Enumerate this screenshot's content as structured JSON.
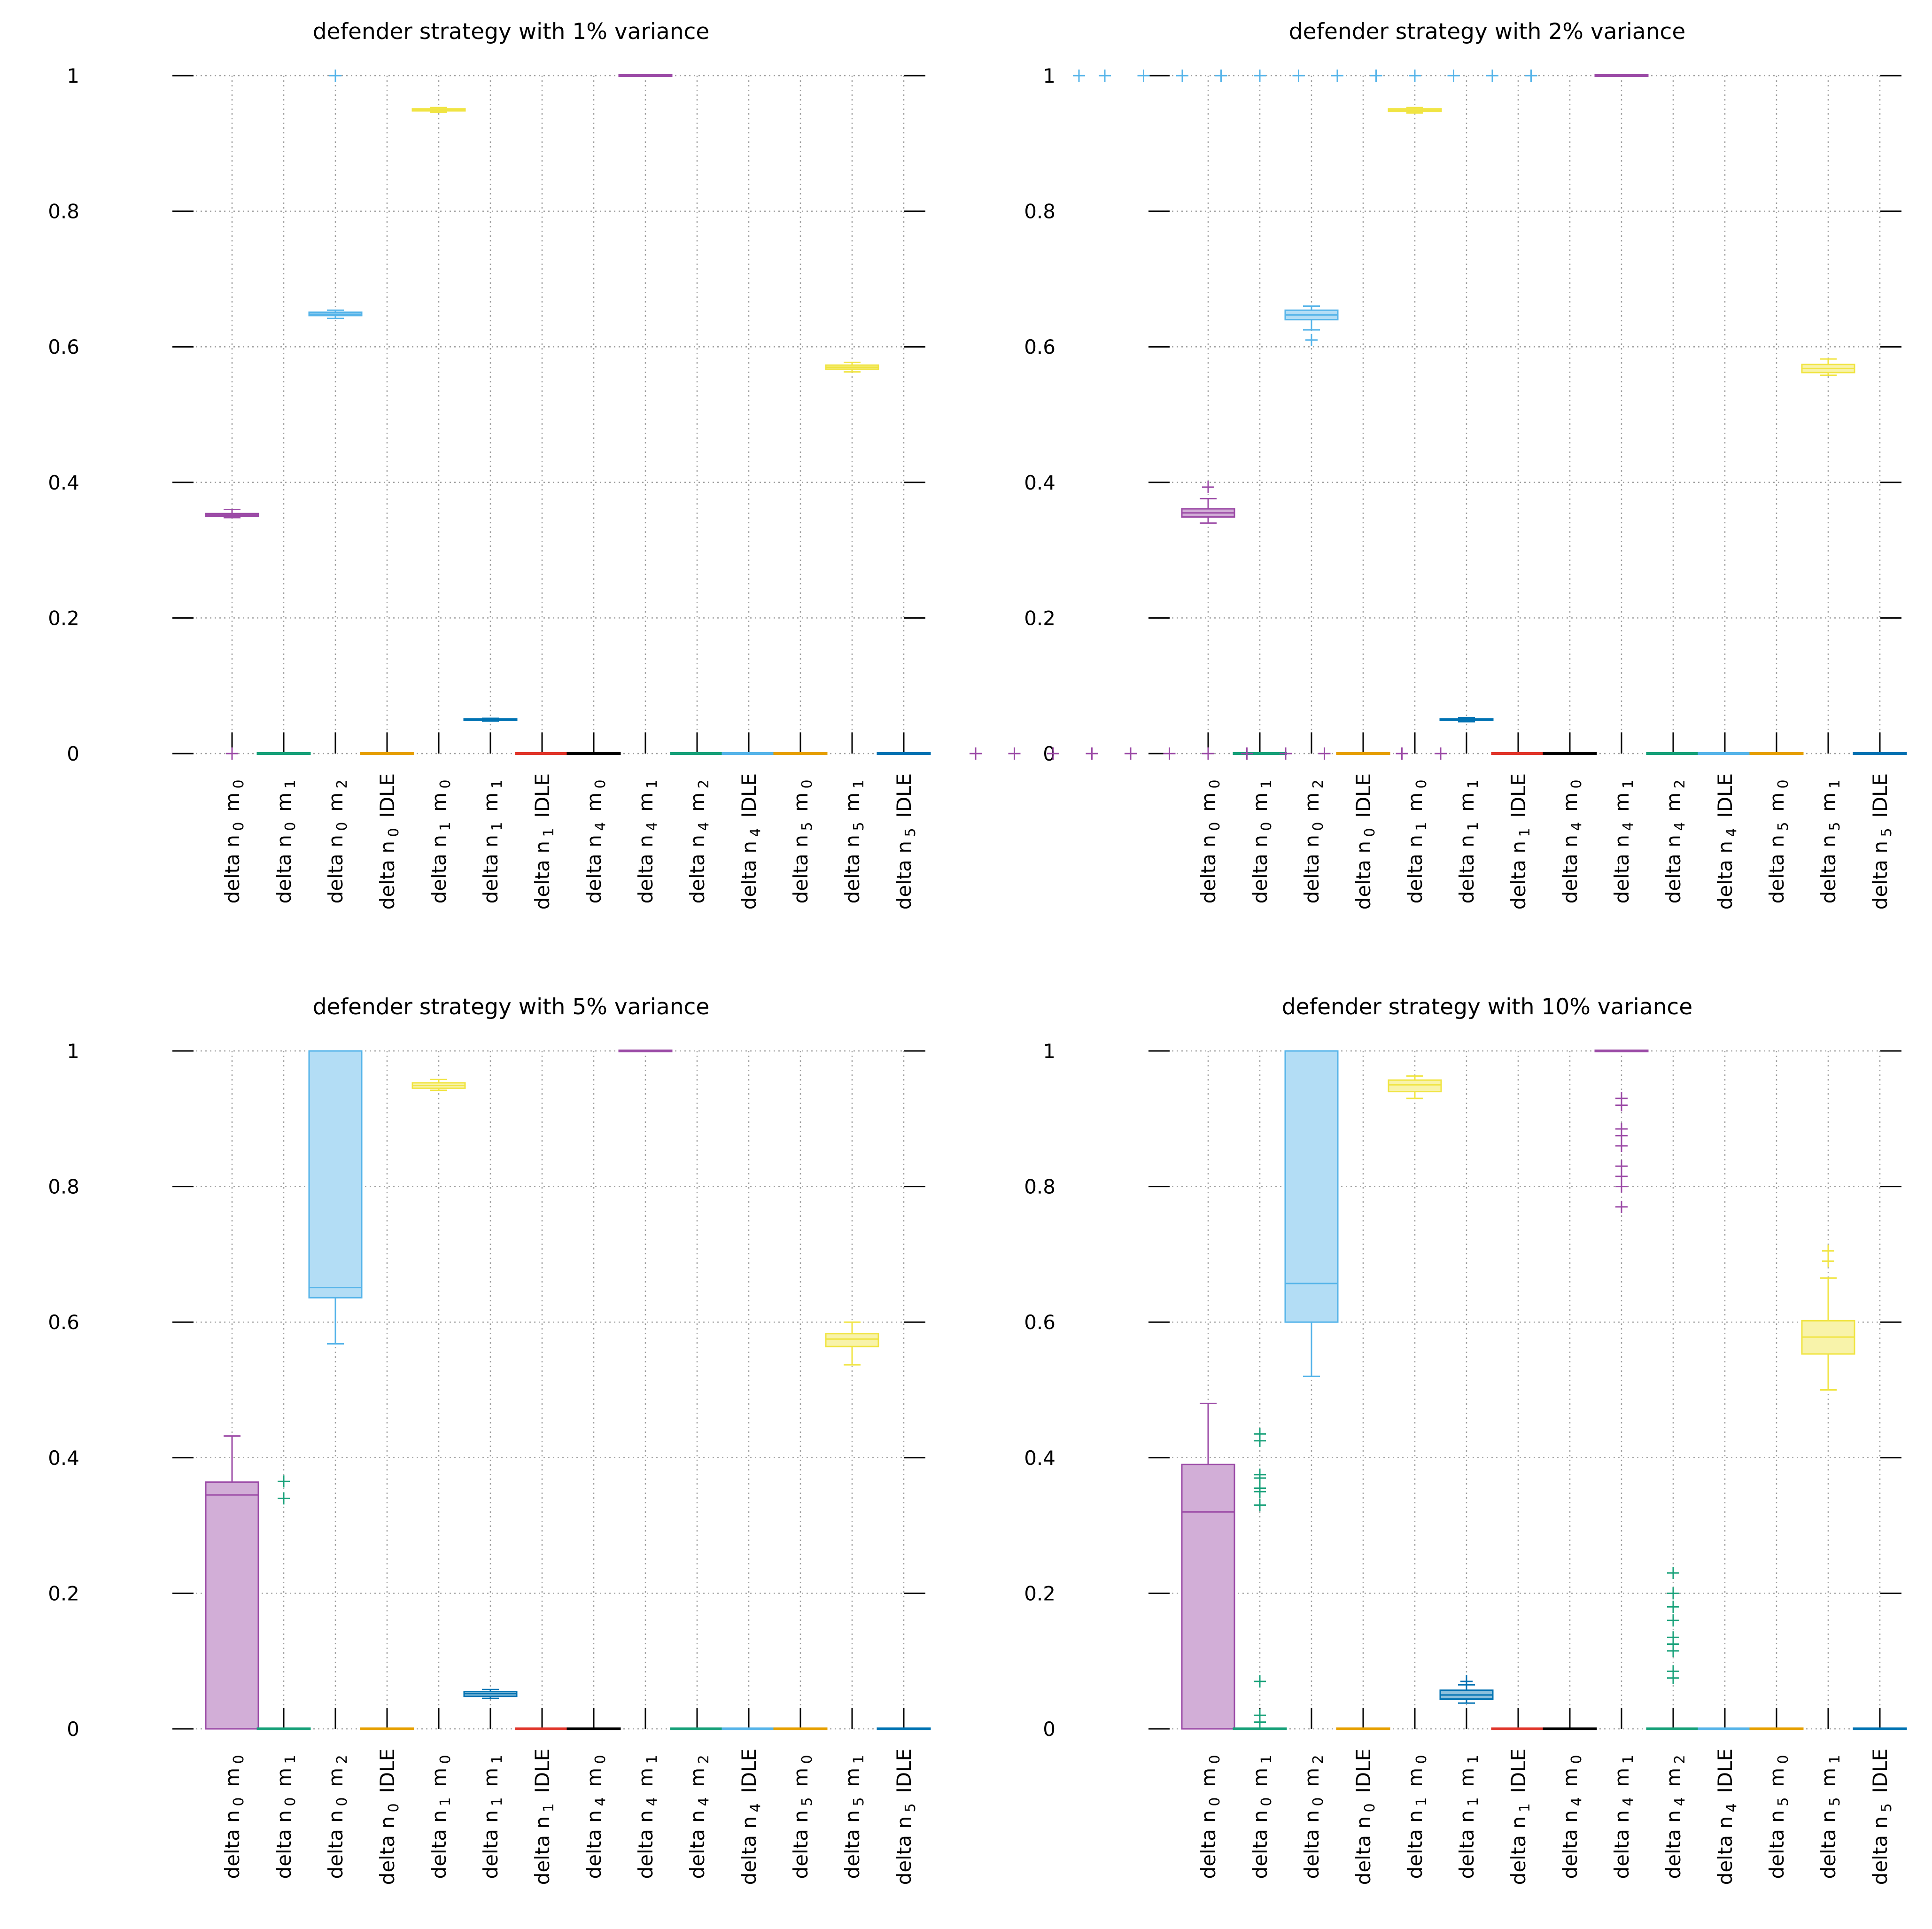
{
  "colors": [
    "#9b4aa6",
    "#16a078",
    "#56b4e9",
    "#e69f00",
    "#f0e442",
    "#0072b2",
    "#e0352a",
    "#000000"
  ],
  "chart_data": [
    {
      "type": "boxplot",
      "title": "defender strategy with 1% variance",
      "xlabel": "",
      "ylabel": "",
      "ylim": [
        0,
        1
      ],
      "yticks": [
        0,
        0.2,
        0.4,
        0.6,
        0.8,
        1
      ],
      "ytick_labels": [
        "0",
        "0.2",
        "0.4",
        "0.6",
        "0.8",
        "1"
      ],
      "grid": true,
      "categories": [
        "delta n_0 m_0",
        "delta n_0 m_1",
        "delta n_0 m_2",
        "delta n_0 IDLE",
        "delta n_1 m_0",
        "delta n_1 m_1",
        "delta n_1 IDLE",
        "delta n_4 m_0",
        "delta n_4 m_1",
        "delta n_4 m_2",
        "delta n_4 IDLE",
        "delta n_5 m_0",
        "delta n_5 m_1",
        "delta n_5 IDLE"
      ],
      "boxes": [
        {
          "whisker_low": 0.348,
          "q1": 0.35,
          "median": 0.352,
          "q3": 0.354,
          "whisker_high": 0.36,
          "outliers": [
            0
          ]
        },
        {
          "whisker_low": 0,
          "q1": 0,
          "median": 0,
          "q3": 0,
          "whisker_high": 0,
          "outliers": []
        },
        {
          "whisker_low": 0.642,
          "q1": 0.646,
          "median": 0.648,
          "q3": 0.651,
          "whisker_high": 0.654,
          "outliers": [
            1
          ]
        },
        {
          "whisker_low": 0,
          "q1": 0,
          "median": 0,
          "q3": 0,
          "whisker_high": 0,
          "outliers": []
        },
        {
          "whisker_low": 0.946,
          "q1": 0.948,
          "median": 0.95,
          "q3": 0.951,
          "whisker_high": 0.953,
          "outliers": []
        },
        {
          "whisker_low": 0.048,
          "q1": 0.049,
          "median": 0.05,
          "q3": 0.051,
          "whisker_high": 0.052,
          "outliers": []
        },
        {
          "whisker_low": 0,
          "q1": 0,
          "median": 0,
          "q3": 0,
          "whisker_high": 0,
          "outliers": []
        },
        {
          "whisker_low": 0,
          "q1": 0,
          "median": 0,
          "q3": 0,
          "whisker_high": 0,
          "outliers": []
        },
        {
          "whisker_low": 1,
          "q1": 1,
          "median": 1,
          "q3": 1,
          "whisker_high": 1,
          "outliers": []
        },
        {
          "whisker_low": 0,
          "q1": 0,
          "median": 0,
          "q3": 0,
          "whisker_high": 0,
          "outliers": []
        },
        {
          "whisker_low": 0,
          "q1": 0,
          "median": 0,
          "q3": 0,
          "whisker_high": 0,
          "outliers": []
        },
        {
          "whisker_low": 0,
          "q1": 0,
          "median": 0,
          "q3": 0,
          "whisker_high": 0,
          "outliers": []
        },
        {
          "whisker_low": 0.563,
          "q1": 0.567,
          "median": 0.57,
          "q3": 0.573,
          "whisker_high": 0.577,
          "outliers": []
        },
        {
          "whisker_low": 0,
          "q1": 0,
          "median": 0,
          "q3": 0,
          "whisker_high": 0,
          "outliers": []
        }
      ],
      "stray_points": []
    },
    {
      "type": "boxplot",
      "title": "defender strategy with 2% variance",
      "xlabel": "",
      "ylabel": "",
      "ylim": [
        0,
        1
      ],
      "yticks": [
        0,
        0.2,
        0.4,
        0.6,
        0.8,
        1
      ],
      "ytick_labels": [
        "0",
        "0.2",
        "0.4",
        "0.6",
        "0.8",
        "1"
      ],
      "grid": true,
      "categories": [
        "delta n_0 m_0",
        "delta n_0 m_1",
        "delta n_0 m_2",
        "delta n_0 IDLE",
        "delta n_1 m_0",
        "delta n_1 m_1",
        "delta n_1 IDLE",
        "delta n_4 m_0",
        "delta n_4 m_1",
        "delta n_4 m_2",
        "delta n_4 IDLE",
        "delta n_5 m_0",
        "delta n_5 m_1",
        "delta n_5 IDLE"
      ],
      "boxes": [
        {
          "whisker_low": 0.34,
          "q1": 0.349,
          "median": 0.355,
          "q3": 0.361,
          "whisker_high": 0.376,
          "outliers": [
            0.393,
            0
          ]
        },
        {
          "whisker_low": 0,
          "q1": 0,
          "median": 0,
          "q3": 0,
          "whisker_high": 0,
          "outliers": []
        },
        {
          "whisker_low": 0.625,
          "q1": 0.64,
          "median": 0.647,
          "q3": 0.654,
          "whisker_high": 0.66,
          "outliers": [
            0.61
          ]
        },
        {
          "whisker_low": 0,
          "q1": 0,
          "median": 0,
          "q3": 0,
          "whisker_high": 0,
          "outliers": []
        },
        {
          "whisker_low": 0.945,
          "q1": 0.947,
          "median": 0.949,
          "q3": 0.951,
          "whisker_high": 0.953,
          "outliers": []
        },
        {
          "whisker_low": 0.047,
          "q1": 0.049,
          "median": 0.05,
          "q3": 0.051,
          "whisker_high": 0.053,
          "outliers": []
        },
        {
          "whisker_low": 0,
          "q1": 0,
          "median": 0,
          "q3": 0,
          "whisker_high": 0,
          "outliers": []
        },
        {
          "whisker_low": 0,
          "q1": 0,
          "median": 0,
          "q3": 0,
          "whisker_high": 0,
          "outliers": []
        },
        {
          "whisker_low": 1,
          "q1": 1,
          "median": 1,
          "q3": 1,
          "whisker_high": 1,
          "outliers": []
        },
        {
          "whisker_low": 0,
          "q1": 0,
          "median": 0,
          "q3": 0,
          "whisker_high": 0,
          "outliers": []
        },
        {
          "whisker_low": 0,
          "q1": 0,
          "median": 0,
          "q3": 0,
          "whisker_high": 0,
          "outliers": []
        },
        {
          "whisker_low": 0,
          "q1": 0,
          "median": 0,
          "q3": 0,
          "whisker_high": 0,
          "outliers": []
        },
        {
          "whisker_low": 0.558,
          "q1": 0.562,
          "median": 0.568,
          "q3": 0.574,
          "whisker_high": 0.582,
          "outliers": []
        },
        {
          "whisker_low": 0,
          "q1": 0,
          "median": 0,
          "q3": 0,
          "whisker_high": 0,
          "outliers": []
        }
      ],
      "stray_points": [
        {
          "x": -2.5,
          "y": 1,
          "color_index": 2
        },
        {
          "x": -2.0,
          "y": 1,
          "color_index": 2
        },
        {
          "x": -1.25,
          "y": 1,
          "color_index": 2
        },
        {
          "x": -0.5,
          "y": 1,
          "color_index": 2
        },
        {
          "x": 0.25,
          "y": 1,
          "color_index": 2
        },
        {
          "x": 1.0,
          "y": 1,
          "color_index": 2
        },
        {
          "x": 1.75,
          "y": 1,
          "color_index": 2
        },
        {
          "x": 2.5,
          "y": 1,
          "color_index": 2
        },
        {
          "x": 3.25,
          "y": 1,
          "color_index": 2
        },
        {
          "x": 4.0,
          "y": 1,
          "color_index": 2
        },
        {
          "x": 4.75,
          "y": 1,
          "color_index": 2
        },
        {
          "x": 5.5,
          "y": 1,
          "color_index": 2
        },
        {
          "x": 6.25,
          "y": 1,
          "color_index": 2
        },
        {
          "x": -4.5,
          "y": 0,
          "color_index": 0
        },
        {
          "x": -3.75,
          "y": 0,
          "color_index": 0
        },
        {
          "x": -3.0,
          "y": 0,
          "color_index": 0
        },
        {
          "x": -2.25,
          "y": 0,
          "color_index": 0
        },
        {
          "x": -1.5,
          "y": 0,
          "color_index": 0
        },
        {
          "x": -0.75,
          "y": 0,
          "color_index": 0
        },
        {
          "x": 0.75,
          "y": 0,
          "color_index": 0
        },
        {
          "x": 1.5,
          "y": 0,
          "color_index": 0
        },
        {
          "x": 2.25,
          "y": 0,
          "color_index": 0
        },
        {
          "x": 3.75,
          "y": 0,
          "color_index": 0
        },
        {
          "x": 4.5,
          "y": 0,
          "color_index": 0
        }
      ]
    },
    {
      "type": "boxplot",
      "title": "defender strategy with 5% variance",
      "xlabel": "",
      "ylabel": "",
      "ylim": [
        0,
        1
      ],
      "yticks": [
        0,
        0.2,
        0.4,
        0.6,
        0.8,
        1
      ],
      "ytick_labels": [
        "0",
        "0.2",
        "0.4",
        "0.6",
        "0.8",
        "1"
      ],
      "grid": true,
      "categories": [
        "delta n_0 m_0",
        "delta n_0 m_1",
        "delta n_0 m_2",
        "delta n_0 IDLE",
        "delta n_1 m_0",
        "delta n_1 m_1",
        "delta n_1 IDLE",
        "delta n_4 m_0",
        "delta n_4 m_1",
        "delta n_4 m_2",
        "delta n_4 IDLE",
        "delta n_5 m_0",
        "delta n_5 m_1",
        "delta n_5 IDLE"
      ],
      "boxes": [
        {
          "whisker_low": 0,
          "q1": 0,
          "median": 0.345,
          "q3": 0.364,
          "whisker_high": 0.432,
          "outliers": []
        },
        {
          "whisker_low": 0,
          "q1": 0,
          "median": 0,
          "q3": 0,
          "whisker_high": 0,
          "outliers": [
            0.365,
            0.34
          ]
        },
        {
          "whisker_low": 0.568,
          "q1": 0.636,
          "median": 0.651,
          "q3": 1,
          "whisker_high": 1,
          "outliers": []
        },
        {
          "whisker_low": 0,
          "q1": 0,
          "median": 0,
          "q3": 0,
          "whisker_high": 0,
          "outliers": []
        },
        {
          "whisker_low": 0.942,
          "q1": 0.945,
          "median": 0.949,
          "q3": 0.953,
          "whisker_high": 0.958,
          "outliers": []
        },
        {
          "whisker_low": 0.045,
          "q1": 0.048,
          "median": 0.052,
          "q3": 0.055,
          "whisker_high": 0.058,
          "outliers": []
        },
        {
          "whisker_low": 0,
          "q1": 0,
          "median": 0,
          "q3": 0,
          "whisker_high": 0,
          "outliers": []
        },
        {
          "whisker_low": 0,
          "q1": 0,
          "median": 0,
          "q3": 0,
          "whisker_high": 0,
          "outliers": []
        },
        {
          "whisker_low": 1,
          "q1": 1,
          "median": 1,
          "q3": 1,
          "whisker_high": 1,
          "outliers": []
        },
        {
          "whisker_low": 0,
          "q1": 0,
          "median": 0,
          "q3": 0,
          "whisker_high": 0,
          "outliers": []
        },
        {
          "whisker_low": 0,
          "q1": 0,
          "median": 0,
          "q3": 0,
          "whisker_high": 0,
          "outliers": []
        },
        {
          "whisker_low": 0,
          "q1": 0,
          "median": 0,
          "q3": 0,
          "whisker_high": 0,
          "outliers": []
        },
        {
          "whisker_low": 0.537,
          "q1": 0.564,
          "median": 0.575,
          "q3": 0.583,
          "whisker_high": 0.6,
          "outliers": []
        },
        {
          "whisker_low": 0,
          "q1": 0,
          "median": 0,
          "q3": 0,
          "whisker_high": 0,
          "outliers": []
        }
      ],
      "stray_points": []
    },
    {
      "type": "boxplot",
      "title": "defender strategy with 10% variance",
      "xlabel": "",
      "ylabel": "",
      "ylim": [
        0,
        1
      ],
      "yticks": [
        0,
        0.2,
        0.4,
        0.6,
        0.8,
        1
      ],
      "ytick_labels": [
        "0",
        "0.2",
        "0.4",
        "0.6",
        "0.8",
        "1"
      ],
      "grid": true,
      "categories": [
        "delta n_0 m_0",
        "delta n_0 m_1",
        "delta n_0 m_2",
        "delta n_0 IDLE",
        "delta n_1 m_0",
        "delta n_1 m_1",
        "delta n_1 IDLE",
        "delta n_4 m_0",
        "delta n_4 m_1",
        "delta n_4 m_2",
        "delta n_4 IDLE",
        "delta n_5 m_0",
        "delta n_5 m_1",
        "delta n_5 IDLE"
      ],
      "boxes": [
        {
          "whisker_low": 0,
          "q1": 0,
          "median": 0.32,
          "q3": 0.39,
          "whisker_high": 0.48,
          "outliers": []
        },
        {
          "whisker_low": 0,
          "q1": 0,
          "median": 0,
          "q3": 0,
          "whisker_high": 0,
          "outliers": [
            0.435,
            0.425,
            0.375,
            0.37,
            0.355,
            0.35,
            0.33,
            0.07,
            0.02,
            0.01
          ]
        },
        {
          "whisker_low": 0.52,
          "q1": 0.6,
          "median": 0.657,
          "q3": 1,
          "whisker_high": 1,
          "outliers": []
        },
        {
          "whisker_low": 0,
          "q1": 0,
          "median": 0,
          "q3": 0,
          "whisker_high": 0,
          "outliers": []
        },
        {
          "whisker_low": 0.93,
          "q1": 0.94,
          "median": 0.95,
          "q3": 0.957,
          "whisker_high": 0.963,
          "outliers": []
        },
        {
          "whisker_low": 0.038,
          "q1": 0.044,
          "median": 0.05,
          "q3": 0.057,
          "whisker_high": 0.065,
          "outliers": [
            0.07
          ]
        },
        {
          "whisker_low": 0,
          "q1": 0,
          "median": 0,
          "q3": 0,
          "whisker_high": 0,
          "outliers": []
        },
        {
          "whisker_low": 0,
          "q1": 0,
          "median": 0,
          "q3": 0,
          "whisker_high": 0,
          "outliers": []
        },
        {
          "whisker_low": 1,
          "q1": 1,
          "median": 1,
          "q3": 1,
          "whisker_high": 1,
          "outliers": [
            0.93,
            0.92,
            0.885,
            0.875,
            0.86,
            0.83,
            0.815,
            0.8,
            0.77
          ]
        },
        {
          "whisker_low": 0,
          "q1": 0,
          "median": 0,
          "q3": 0,
          "whisker_high": 0,
          "outliers": [
            0.23,
            0.2,
            0.18,
            0.16,
            0.135,
            0.125,
            0.115,
            0.085,
            0.075
          ]
        },
        {
          "whisker_low": 0,
          "q1": 0,
          "median": 0,
          "q3": 0,
          "whisker_high": 0,
          "outliers": []
        },
        {
          "whisker_low": 0,
          "q1": 0,
          "median": 0,
          "q3": 0,
          "whisker_high": 0,
          "outliers": []
        },
        {
          "whisker_low": 0.5,
          "q1": 0.553,
          "median": 0.578,
          "q3": 0.602,
          "whisker_high": 0.665,
          "outliers": [
            0.705,
            0.69
          ]
        },
        {
          "whisker_low": 0,
          "q1": 0,
          "median": 0,
          "q3": 0,
          "whisker_high": 0,
          "outliers": []
        }
      ],
      "stray_points": []
    }
  ]
}
